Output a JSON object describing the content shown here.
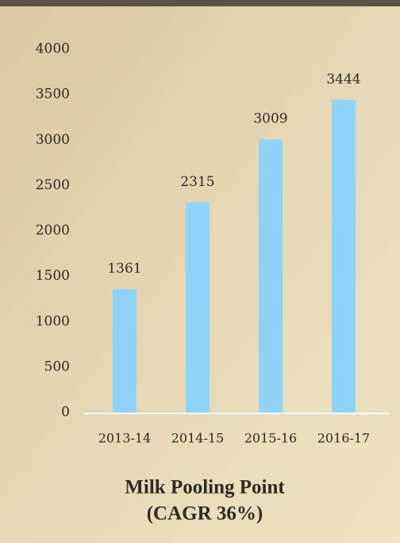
{
  "chart_data": {
    "type": "bar",
    "title": "Milk Pooling Point",
    "subtitle": "(CAGR 36%)",
    "categories": [
      "2013-14",
      "2014-15",
      "2015-16",
      "2016-17"
    ],
    "values": [
      1361,
      2315,
      3009,
      3444
    ],
    "color": "#8ed3f8",
    "ylim": [
      0,
      4000
    ],
    "yticks": [
      0,
      500,
      1000,
      1500,
      2000,
      2500,
      3000,
      3500,
      4000
    ]
  }
}
